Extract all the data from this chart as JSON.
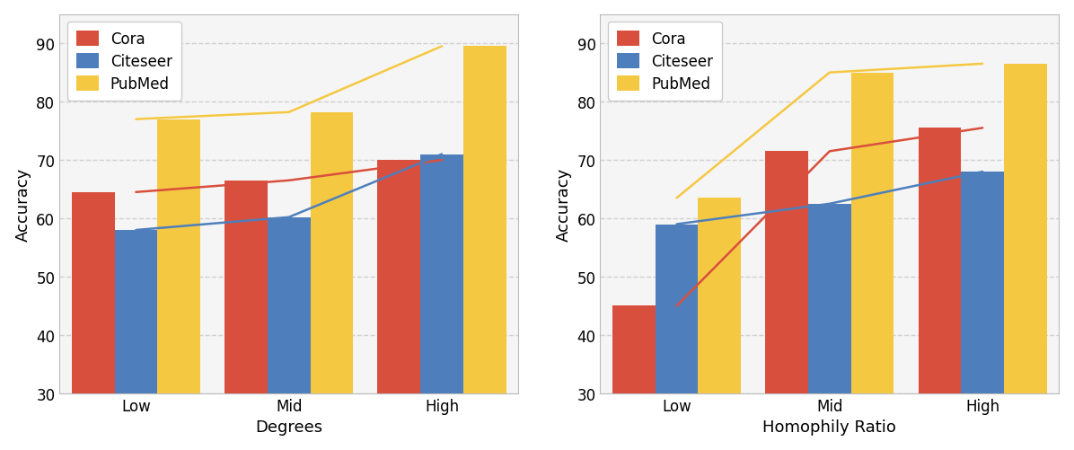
{
  "left": {
    "categories": [
      "Low",
      "Mid",
      "High"
    ],
    "xlabel": "Degrees",
    "ylabel": "Accuracy",
    "ylim": [
      30,
      95
    ],
    "yticks": [
      30,
      40,
      50,
      60,
      70,
      80,
      90
    ],
    "bars": {
      "Cora": [
        64.5,
        66.5,
        70.0
      ],
      "Citeseer": [
        58.0,
        60.2,
        71.0
      ],
      "PubMed": [
        77.0,
        78.2,
        89.5
      ]
    }
  },
  "right": {
    "categories": [
      "Low",
      "Mid",
      "High"
    ],
    "xlabel": "Homophily Ratio",
    "ylabel": "Accuracy",
    "ylim": [
      30,
      95
    ],
    "yticks": [
      30,
      40,
      50,
      60,
      70,
      80,
      90
    ],
    "bars": {
      "Cora": [
        45.0,
        71.5,
        75.5
      ],
      "Citeseer": [
        59.0,
        62.5,
        68.0
      ],
      "PubMed": [
        63.5,
        85.0,
        86.5
      ]
    }
  },
  "colors": {
    "Cora": "#d94f3d",
    "Citeseer": "#4e7fbc",
    "PubMed": "#f5c842"
  },
  "legend_order": [
    "Cora",
    "Citeseer",
    "PubMed"
  ],
  "bar_width": 0.28,
  "background_color": "#f5f5f5",
  "label_fontsize": 13,
  "tick_fontsize": 12,
  "legend_fontsize": 12,
  "fig_facecolor": "#ffffff"
}
